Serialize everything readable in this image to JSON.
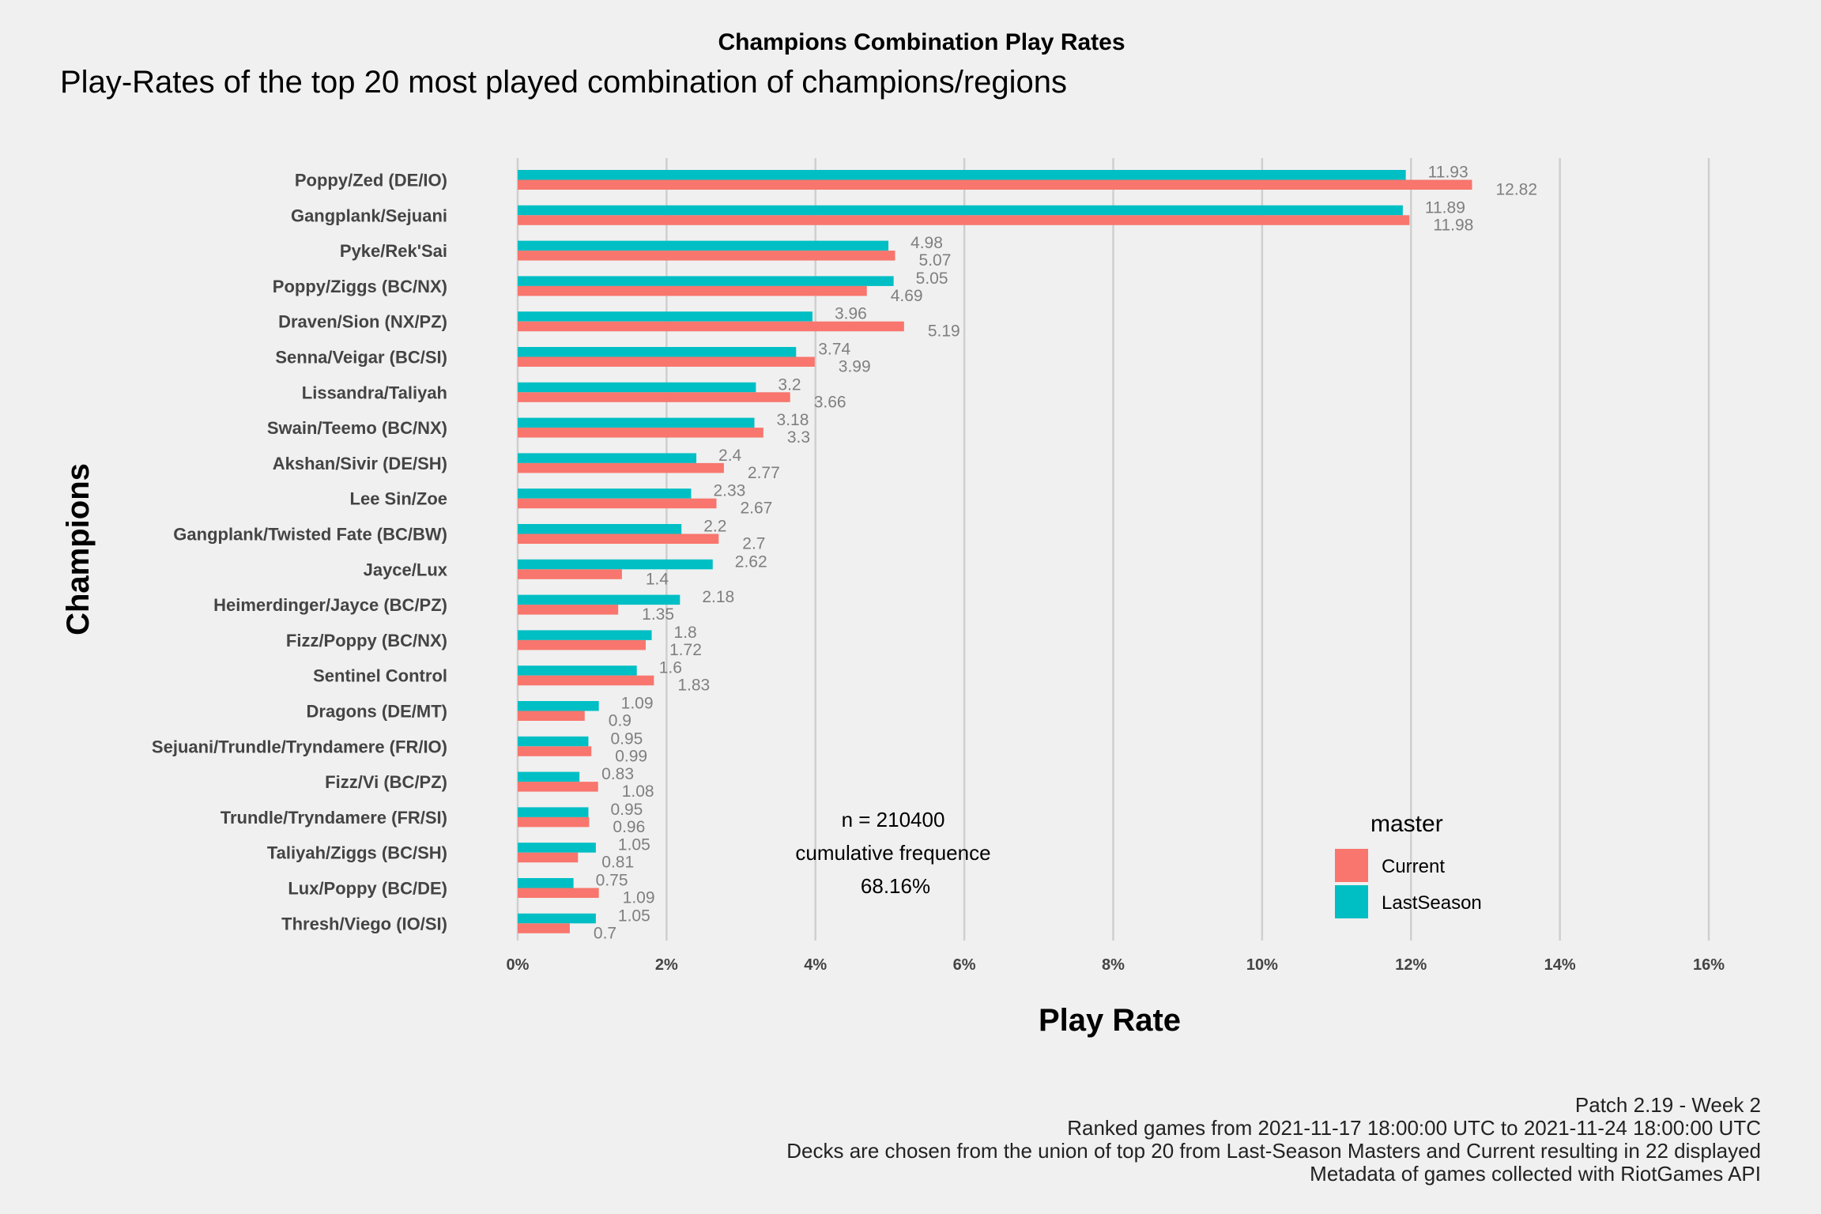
{
  "chart_data": {
    "type": "bar",
    "orientation": "horizontal",
    "title": "Champions Combination Play Rates",
    "subtitle": "Play-Rates of the top 20 most played combination of champions/regions",
    "xlabel": "Play Rate",
    "ylabel": "Champions",
    "xlim": [
      0,
      16
    ],
    "xticks": [
      "0%",
      "2%",
      "4%",
      "6%",
      "8%",
      "10%",
      "12%",
      "14%",
      "16%"
    ],
    "grid": true,
    "legend": {
      "title": "master",
      "placement": "bottom-right"
    },
    "categories": [
      "Poppy/Zed (DE/IO)",
      "Gangplank/Sejuani",
      "Pyke/Rek'Sai",
      "Poppy/Ziggs (BC/NX)",
      "Draven/Sion (NX/PZ)",
      "Senna/Veigar (BC/SI)",
      "Lissandra/Taliyah",
      "Swain/Teemo (BC/NX)",
      "Akshan/Sivir (DE/SH)",
      "Lee Sin/Zoe",
      "Gangplank/Twisted Fate (BC/BW)",
      "Jayce/Lux",
      "Heimerdinger/Jayce (BC/PZ)",
      "Fizz/Poppy (BC/NX)",
      "Sentinel Control",
      "Dragons (DE/MT)",
      "Sejuani/Trundle/Tryndamere (FR/IO)",
      "Fizz/Vi (BC/PZ)",
      "Trundle/Tryndamere (FR/SI)",
      "Taliyah/Ziggs (BC/SH)",
      "Lux/Poppy (BC/DE)",
      "Thresh/Viego (IO/SI)"
    ],
    "series": [
      {
        "name": "LastSeason",
        "color": "#00bfc4",
        "values": [
          11.93,
          11.89,
          4.98,
          5.05,
          3.96,
          3.74,
          3.2,
          3.18,
          2.4,
          2.33,
          2.2,
          2.62,
          2.18,
          1.8,
          1.6,
          1.09,
          0.95,
          0.83,
          0.95,
          1.05,
          0.75,
          1.05
        ],
        "labels": [
          "11.93",
          "11.89",
          "4.98",
          "5.05",
          "3.96",
          "3.74",
          "3.2",
          "3.18",
          "2.4",
          "2.33",
          "2.2",
          "2.62",
          "2.18",
          "1.8",
          "1.6",
          "1.09",
          "0.95",
          "0.83",
          "0.95",
          "1.05",
          "0.75",
          "1.05"
        ]
      },
      {
        "name": "Current",
        "color": "#f8766d",
        "values": [
          12.82,
          11.98,
          5.07,
          4.69,
          5.19,
          3.99,
          3.66,
          3.3,
          2.77,
          2.67,
          2.7,
          1.4,
          1.35,
          1.72,
          1.83,
          0.9,
          0.99,
          1.08,
          0.96,
          0.81,
          1.09,
          0.7
        ],
        "labels": [
          "12.82",
          "11.98",
          "5.07",
          "4.69",
          "5.19",
          "3.99",
          "3.66",
          "3.3",
          "2.77",
          "2.67",
          "2.7",
          "1.4",
          "1.35",
          "1.72",
          "1.83",
          "0.9",
          "0.99",
          "1.08",
          "0.96",
          "0.81",
          "1.09",
          "0.7"
        ]
      }
    ],
    "legend_entries": [
      {
        "label": "Current",
        "color": "#f8766d"
      },
      {
        "label": "LastSeason",
        "color": "#00bfc4"
      }
    ],
    "annotation": [
      "n = 210400",
      "cumulative frequence",
      "68.16%"
    ]
  },
  "caption": [
    "Patch 2.19 - Week 2",
    "Ranked games from 2021-11-17 18:00:00 UTC to 2021-11-24 18:00:00 UTC",
    "Decks are chosen from the union of top 20 from Last-Season Masters and Current resulting in 22 displayed",
    "Metadata of games collected with RiotGames API"
  ]
}
